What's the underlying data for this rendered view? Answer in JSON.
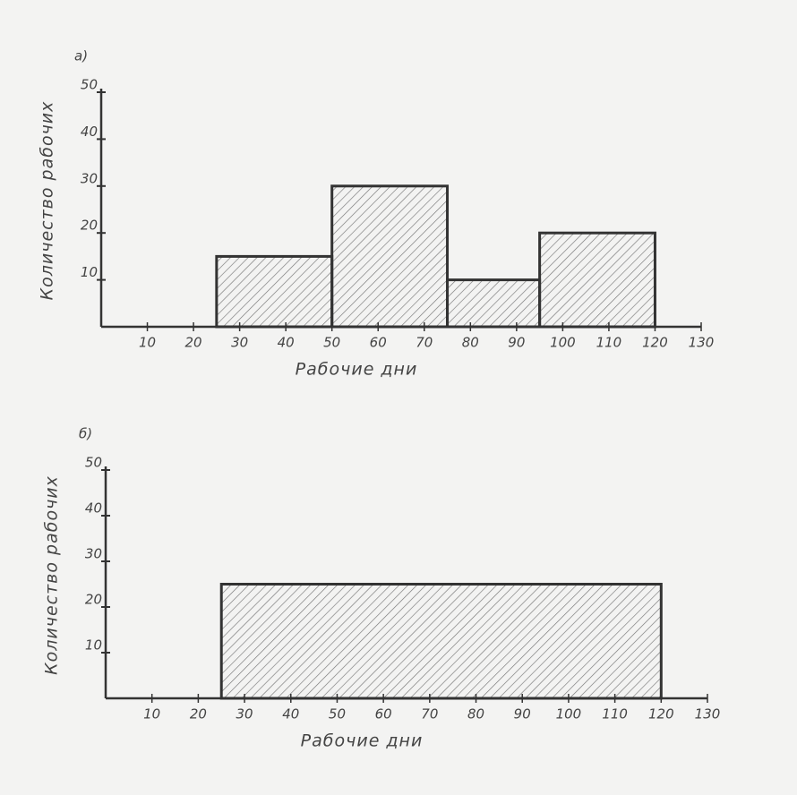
{
  "chart_data": [
    {
      "type": "histogram",
      "label": "а)",
      "bins": [
        25,
        50,
        75,
        95,
        120
      ],
      "values": [
        15,
        30,
        10,
        20
      ],
      "xlim": [
        0,
        130
      ],
      "xticks": [
        10,
        20,
        30,
        40,
        50,
        60,
        70,
        80,
        90,
        100,
        110,
        120,
        130
      ],
      "ylim": [
        0,
        50
      ],
      "yticks": [
        10,
        20,
        30,
        40,
        50
      ],
      "x_label": "Рабочие дни",
      "y_label": "Количество рабочих",
      "color": "#333333",
      "hatch": true
    },
    {
      "type": "histogram",
      "label": "б)",
      "bins": [
        25,
        120
      ],
      "values": [
        25
      ],
      "xlim": [
        0,
        130
      ],
      "xticks": [
        10,
        20,
        30,
        40,
        50,
        60,
        70,
        80,
        90,
        100,
        110,
        120,
        130
      ],
      "ylim": [
        0,
        50
      ],
      "yticks": [
        10,
        20,
        30,
        40,
        50
      ],
      "x_label": "Рабочие дни",
      "y_label": "Количество рабочих",
      "color": "#333333",
      "hatch": true
    }
  ]
}
